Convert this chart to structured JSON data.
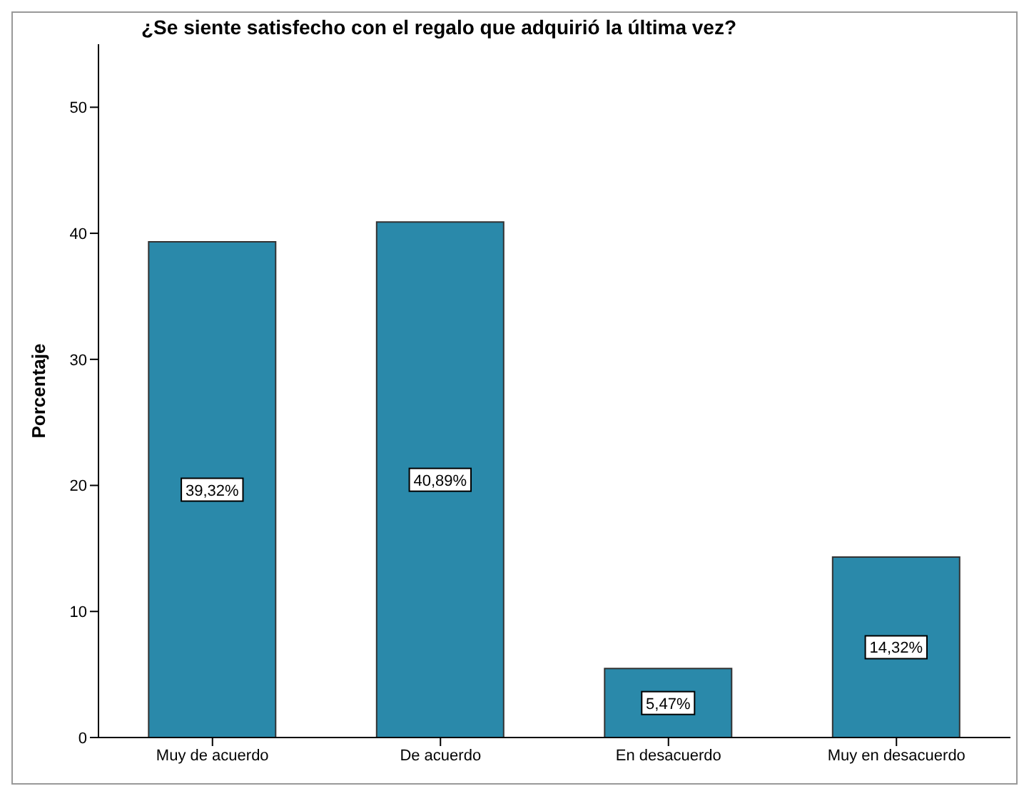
{
  "chart_data": {
    "type": "bar",
    "title": "¿Se siente satisfecho con el regalo que adquirió la última vez?",
    "ylabel": "Porcentaje",
    "categories": [
      "Muy de acuerdo",
      "De acuerdo",
      "En desacuerdo",
      "Muy en desacuerdo"
    ],
    "values": [
      39.32,
      40.89,
      5.47,
      14.32
    ],
    "value_labels": [
      "39,32%",
      "40,89%",
      "5,47%",
      "14,32%"
    ],
    "color": "#2a89aa",
    "ylim": [
      0,
      55
    ],
    "yticks": [
      0,
      10,
      20,
      30,
      40,
      50
    ]
  }
}
